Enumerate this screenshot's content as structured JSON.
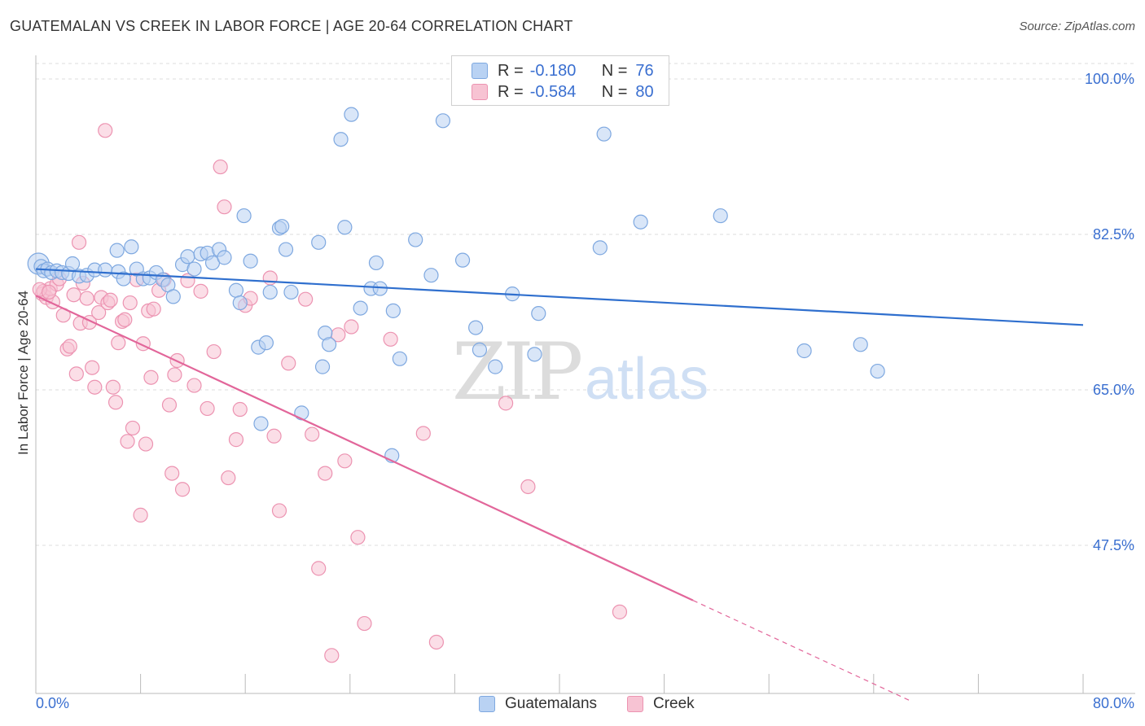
{
  "title": "GUATEMALAN VS CREEK IN LABOR FORCE | AGE 20-64 CORRELATION CHART",
  "source": "Source: ZipAtlas.com",
  "watermark": {
    "zip": "ZIP",
    "atlas": "atlas"
  },
  "legend_top": [
    {
      "r_label": "R =",
      "r_value": "-0.180",
      "n_label": "N =",
      "n_value": "76"
    },
    {
      "r_label": "R =",
      "r_value": "-0.584",
      "n_label": "N =",
      "n_value": "80"
    }
  ],
  "legend_bottom": [
    "Guatemalans",
    "Creek"
  ],
  "colors": {
    "blue_fill": "#b9d2f3",
    "blue_stroke": "#7ea8e0",
    "blue_line": "#2f6fce",
    "pink_fill": "#f7c3d3",
    "pink_stroke": "#ec93b1",
    "pink_line": "#e2669a",
    "tick_label": "#3a6fd0",
    "grid": "#dddddd"
  },
  "chart_data": {
    "type": "scatter",
    "title": "GUATEMALAN VS CREEK IN LABOR FORCE | AGE 20-64 CORRELATION CHART",
    "xlabel": "",
    "ylabel": "In Labor Force | Age 20-64",
    "xlim": [
      0,
      80
    ],
    "ylim": [
      30,
      102
    ],
    "x_tick_labels": [
      "0.0%",
      "80.0%"
    ],
    "y_ticks": [
      47.5,
      65.0,
      82.5,
      100.0
    ],
    "y_tick_labels": [
      "47.5%",
      "65.0%",
      "82.5%",
      "100.0%"
    ],
    "grid": true,
    "legend_position": "top-center",
    "series": [
      {
        "name": "Guatemalans",
        "R": -0.18,
        "N": 76,
        "trend": {
          "x": [
            0,
            80
          ],
          "y": [
            78.6,
            72.3
          ]
        },
        "points": [
          [
            0.2,
            79.2
          ],
          [
            0.4,
            78.9
          ],
          [
            0.6,
            78.4
          ],
          [
            0.9,
            78.6
          ],
          [
            1.2,
            78.2
          ],
          [
            1.6,
            78.4
          ],
          [
            2.0,
            78.2
          ],
          [
            2.5,
            78.1
          ],
          [
            2.8,
            79.2
          ],
          [
            3.3,
            77.8
          ],
          [
            3.9,
            77.9
          ],
          [
            4.5,
            78.5
          ],
          [
            5.3,
            78.5
          ],
          [
            6.3,
            78.3
          ],
          [
            6.2,
            80.7
          ],
          [
            6.7,
            77.5
          ],
          [
            7.3,
            81.1
          ],
          [
            7.7,
            78.6
          ],
          [
            8.2,
            77.5
          ],
          [
            8.7,
            77.6
          ],
          [
            9.2,
            78.2
          ],
          [
            9.7,
            77.4
          ],
          [
            10.1,
            76.8
          ],
          [
            10.5,
            75.5
          ],
          [
            11.2,
            79.1
          ],
          [
            11.6,
            80.0
          ],
          [
            12.1,
            78.6
          ],
          [
            12.6,
            80.3
          ],
          [
            13.1,
            80.4
          ],
          [
            13.5,
            79.3
          ],
          [
            14.0,
            80.8
          ],
          [
            14.4,
            79.9
          ],
          [
            15.3,
            76.2
          ],
          [
            15.6,
            74.8
          ],
          [
            15.9,
            84.6
          ],
          [
            16.4,
            79.5
          ],
          [
            17.0,
            69.8
          ],
          [
            17.2,
            61.2
          ],
          [
            17.6,
            70.3
          ],
          [
            17.9,
            76.0
          ],
          [
            18.6,
            83.2
          ],
          [
            18.8,
            83.4
          ],
          [
            19.1,
            80.8
          ],
          [
            19.5,
            76.0
          ],
          [
            20.3,
            62.4
          ],
          [
            21.6,
            81.6
          ],
          [
            21.9,
            67.6
          ],
          [
            22.1,
            71.4
          ],
          [
            22.4,
            70.1
          ],
          [
            23.3,
            93.2
          ],
          [
            23.6,
            83.3
          ],
          [
            24.1,
            96.0
          ],
          [
            24.8,
            74.2
          ],
          [
            25.6,
            76.4
          ],
          [
            26.0,
            79.3
          ],
          [
            26.3,
            76.4
          ],
          [
            27.3,
            73.9
          ],
          [
            27.8,
            68.5
          ],
          [
            29.0,
            81.9
          ],
          [
            30.2,
            77.9
          ],
          [
            31.1,
            95.3
          ],
          [
            32.6,
            79.6
          ],
          [
            33.6,
            72.0
          ],
          [
            33.9,
            69.5
          ],
          [
            35.1,
            67.6
          ],
          [
            36.4,
            75.8
          ],
          [
            38.1,
            69.0
          ],
          [
            38.4,
            73.6
          ],
          [
            43.1,
            81.0
          ],
          [
            43.4,
            93.8
          ],
          [
            46.2,
            83.9
          ],
          [
            52.3,
            84.6
          ],
          [
            58.7,
            69.4
          ],
          [
            63.0,
            70.1
          ],
          [
            64.3,
            67.1
          ],
          [
            27.2,
            57.6
          ]
        ]
      },
      {
        "name": "Creek",
        "R": -0.584,
        "N": 80,
        "trend": {
          "x": [
            0,
            50.2
          ],
          "y": [
            75.6,
            41.3
          ]
        },
        "trend_extension": {
          "x": [
            50.2,
            66.8
          ],
          "y": [
            41.3,
            30.0
          ]
        },
        "points": [
          [
            0.5,
            75.8
          ],
          [
            0.6,
            76.1
          ],
          [
            0.8,
            75.4
          ],
          [
            1.1,
            76.4
          ],
          [
            1.3,
            74.9
          ],
          [
            1.6,
            76.9
          ],
          [
            1.8,
            77.5
          ],
          [
            2.1,
            73.4
          ],
          [
            2.4,
            69.6
          ],
          [
            2.6,
            69.9
          ],
          [
            2.9,
            75.7
          ],
          [
            3.1,
            66.8
          ],
          [
            3.3,
            81.6
          ],
          [
            3.4,
            72.5
          ],
          [
            3.6,
            77.0
          ],
          [
            3.9,
            75.3
          ],
          [
            4.1,
            72.6
          ],
          [
            4.3,
            67.5
          ],
          [
            4.5,
            65.3
          ],
          [
            4.8,
            73.7
          ],
          [
            5.0,
            75.4
          ],
          [
            5.3,
            94.2
          ],
          [
            5.5,
            74.8
          ],
          [
            5.7,
            75.1
          ],
          [
            5.9,
            65.3
          ],
          [
            6.1,
            63.6
          ],
          [
            6.3,
            70.3
          ],
          [
            6.6,
            72.7
          ],
          [
            6.8,
            72.9
          ],
          [
            7.0,
            59.2
          ],
          [
            7.2,
            74.8
          ],
          [
            7.4,
            60.7
          ],
          [
            7.7,
            77.4
          ],
          [
            8.0,
            50.9
          ],
          [
            8.2,
            70.2
          ],
          [
            8.4,
            58.9
          ],
          [
            8.6,
            73.9
          ],
          [
            8.8,
            66.4
          ],
          [
            9.0,
            74.1
          ],
          [
            9.4,
            76.2
          ],
          [
            9.8,
            77.4
          ],
          [
            10.2,
            63.3
          ],
          [
            10.4,
            55.6
          ],
          [
            10.6,
            66.7
          ],
          [
            10.8,
            68.3
          ],
          [
            11.2,
            53.8
          ],
          [
            11.6,
            77.3
          ],
          [
            12.1,
            65.5
          ],
          [
            12.6,
            76.1
          ],
          [
            13.1,
            62.9
          ],
          [
            13.6,
            69.3
          ],
          [
            14.1,
            90.1
          ],
          [
            14.4,
            85.6
          ],
          [
            14.7,
            55.1
          ],
          [
            15.3,
            59.4
          ],
          [
            15.6,
            62.8
          ],
          [
            16.0,
            74.5
          ],
          [
            16.4,
            75.3
          ],
          [
            17.9,
            77.6
          ],
          [
            18.2,
            59.8
          ],
          [
            18.6,
            51.4
          ],
          [
            19.3,
            68.0
          ],
          [
            20.6,
            75.2
          ],
          [
            21.1,
            60.0
          ],
          [
            21.6,
            44.9
          ],
          [
            22.1,
            55.6
          ],
          [
            22.6,
            35.1
          ],
          [
            23.1,
            71.2
          ],
          [
            23.6,
            57.0
          ],
          [
            24.1,
            72.1
          ],
          [
            24.6,
            48.4
          ],
          [
            25.1,
            38.7
          ],
          [
            27.1,
            70.7
          ],
          [
            29.6,
            60.1
          ],
          [
            30.6,
            36.6
          ],
          [
            35.9,
            63.5
          ],
          [
            37.6,
            54.1
          ],
          [
            44.6,
            40.0
          ],
          [
            0.3,
            76.3
          ],
          [
            1.0,
            76.0
          ]
        ]
      }
    ]
  }
}
